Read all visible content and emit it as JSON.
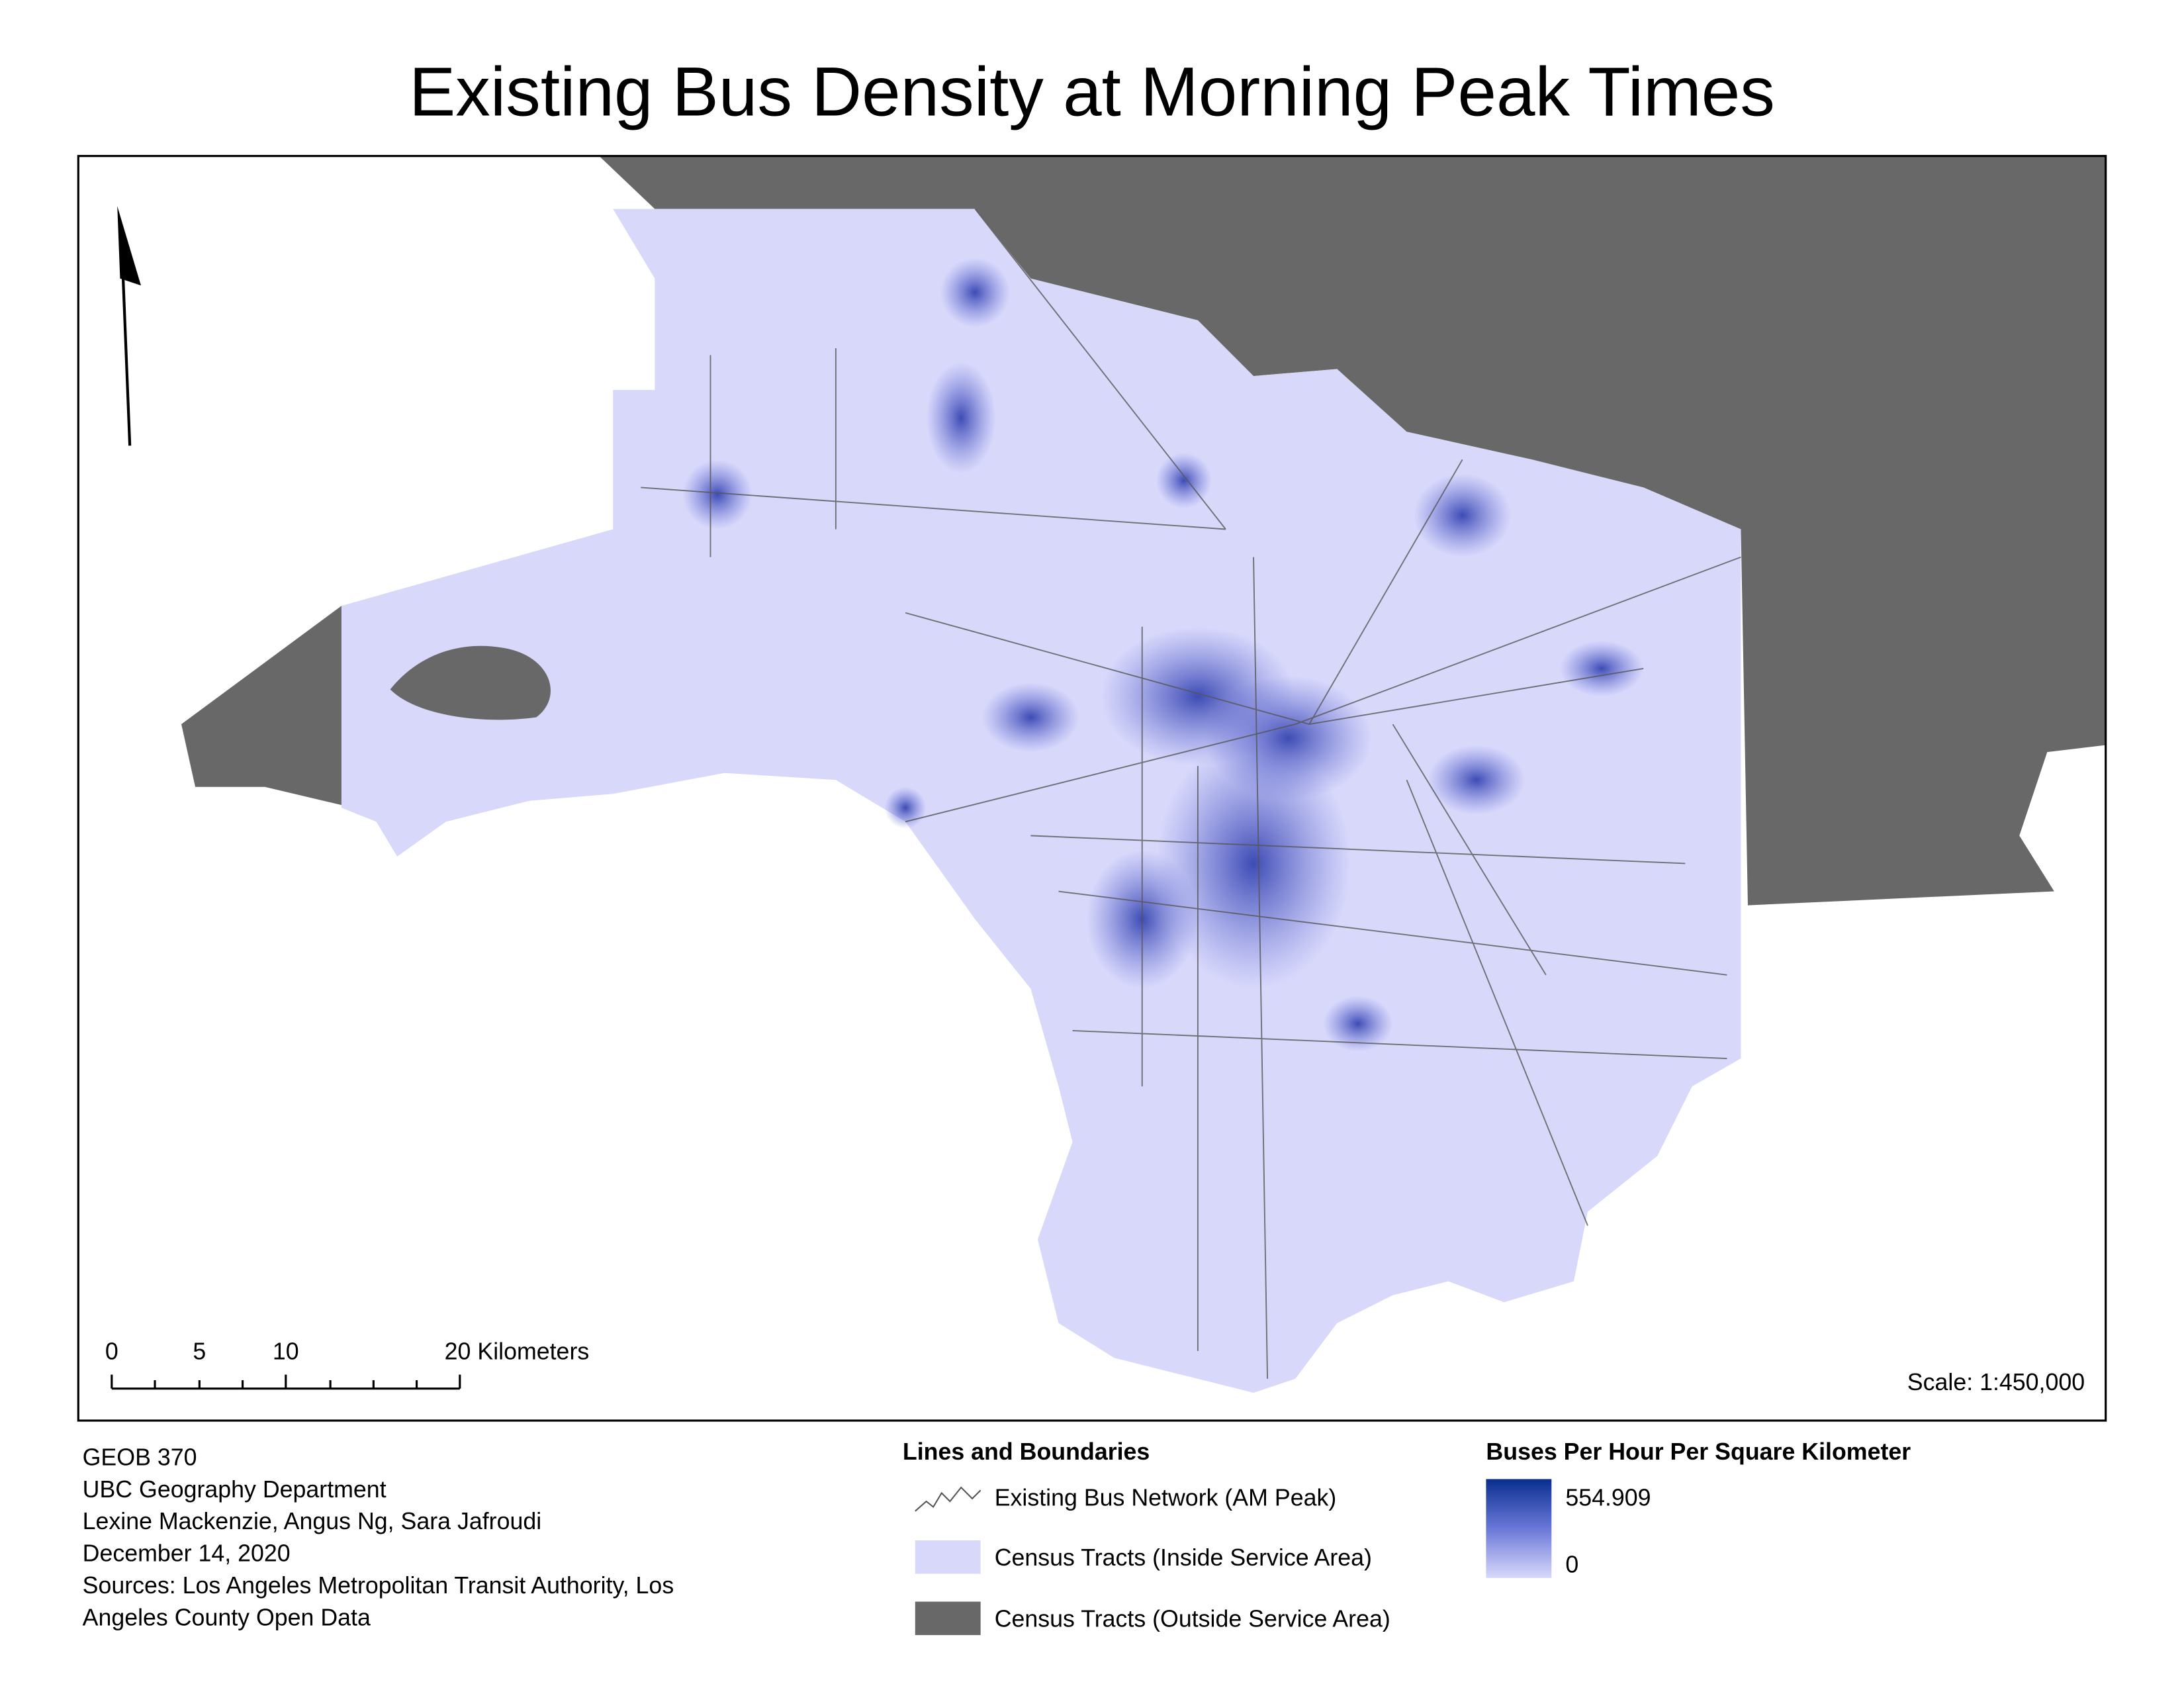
{
  "title": "Existing Bus Density at Morning Peak Times",
  "map": {
    "scale_bar": {
      "labels": [
        "0",
        "5",
        "10",
        "20 Kilometers"
      ]
    },
    "scale": "Scale: 1:450,000"
  },
  "credits": [
    "GEOB 370",
    "UBC Geography Department",
    "Lexine Mackenzie, Angus Ng, Sara Jafroudi",
    "December 14, 2020",
    "Sources: Los Angeles Metropolitan Transit Authority, Los",
    "Angeles County Open Data"
  ],
  "legend": {
    "lines_title": "Lines and Boundaries",
    "items": [
      "Existing Bus Network (AM Peak)",
      "Census Tracts (Inside Service Area)",
      "Census Tracts (Outside Service Area)"
    ],
    "density_title": "Buses Per Hour Per Square Kilometer",
    "density_max": "554.909",
    "density_min": "0"
  }
}
